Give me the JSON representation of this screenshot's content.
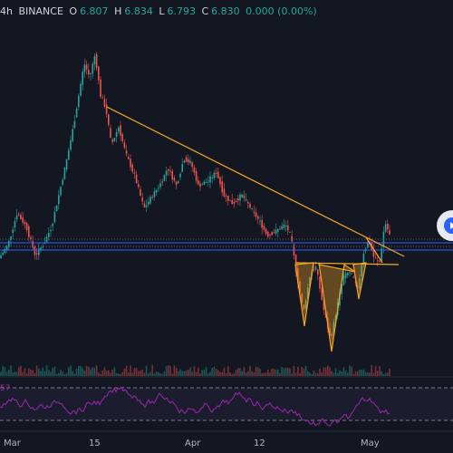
{
  "header": {
    "interval": "4h",
    "exchange": "BINANCE",
    "open_label": "O",
    "open": "6.807",
    "high_label": "H",
    "high": "6.834",
    "low_label": "L",
    "low": "6.793",
    "close_label": "C",
    "close": "6.830",
    "change": "0.000 (0.00%)"
  },
  "rsi_label": "57",
  "x_axis": [
    "Mar",
    "15",
    "Apr",
    "12",
    "May"
  ],
  "colors": {
    "background": "#131722",
    "up": "#26a69a",
    "down": "#ef5350",
    "trendline": "#f5a623",
    "support": "#2962ff",
    "rsi": "#9c27b0"
  },
  "icons": {
    "scroll_button": "play-icon"
  }
}
